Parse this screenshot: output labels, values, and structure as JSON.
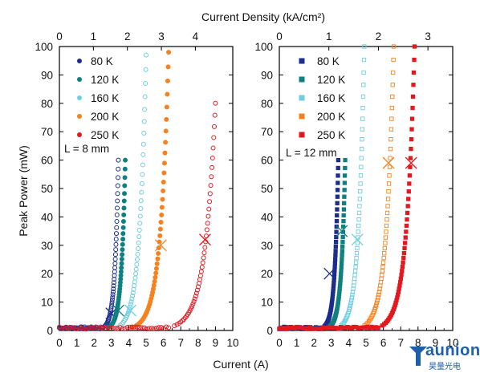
{
  "colors": {
    "80 K": "#1c2d8c",
    "120 K": "#0f8080",
    "160 K": "#6fcde0",
    "200 K": "#f5821f",
    "250 K": "#e3191f",
    "axis": "#000000"
  },
  "labels": {
    "top_axis_title": "Current Density (kA/cm²)",
    "bottom_axis_title": "Current (A)",
    "y_axis_title": "Peak Power (mW)"
  },
  "watermark": {
    "brand": "aunion",
    "sub": "昊量光电"
  },
  "chart_data": [
    {
      "type": "scatter",
      "panel": "left",
      "annotation": "L = 8 mm",
      "xlabel": "Current (A)",
      "ylabel": "Peak Power (mW)",
      "x2label": "Current Density (kA/cm²)",
      "xlim": [
        0,
        10
      ],
      "ylim": [
        0,
        100
      ],
      "x2lim": [
        0,
        5.1
      ],
      "xticks": [
        0,
        1,
        2,
        3,
        4,
        5,
        6,
        7,
        8,
        9,
        10
      ],
      "yticks": [
        0,
        10,
        20,
        30,
        40,
        50,
        60,
        70,
        80,
        90,
        100
      ],
      "x2ticks": [
        0,
        1,
        2,
        3,
        4
      ],
      "marker": "circle",
      "legend_position": "top-left",
      "series": [
        {
          "name": "80 K",
          "threshold": 2.5,
          "x_top": 3.4,
          "y_top": 60,
          "x_cross": 3.0,
          "y_cross": 6
        },
        {
          "name": "120 K",
          "threshold": 2.8,
          "x_top": 3.8,
          "y_top": 60,
          "x_cross": 3.4,
          "y_cross": 7
        },
        {
          "name": "160 K",
          "threshold": 3.3,
          "x_top": 5.0,
          "y_top": 97,
          "x_cross": 4.1,
          "y_cross": 7
        },
        {
          "name": "200 K",
          "threshold": 4.2,
          "x_top": 6.3,
          "y_top": 98,
          "x_cross": 5.85,
          "y_cross": 30
        },
        {
          "name": "250 K",
          "threshold": 6.3,
          "x_top": 9.0,
          "y_top": 80,
          "x_cross": 8.4,
          "y_cross": 32
        }
      ]
    },
    {
      "type": "scatter",
      "panel": "right",
      "annotation": "L = 12 mm",
      "xlabel": "Current (A)",
      "ylabel": "Peak Power (mW)",
      "x2label": "Current Density (kA/cm²)",
      "xlim": [
        0,
        10
      ],
      "ylim": [
        0,
        100
      ],
      "x2lim": [
        0,
        3.5
      ],
      "xticks": [
        0,
        1,
        2,
        3,
        4,
        5,
        6,
        7,
        8,
        9,
        10
      ],
      "yticks": [
        0,
        10,
        20,
        30,
        40,
        50,
        60,
        70,
        80,
        90,
        100
      ],
      "x2ticks": [
        0,
        1,
        2,
        3
      ],
      "marker": "square",
      "legend_position": "top-left",
      "series": [
        {
          "name": "80 K",
          "threshold": 2.5,
          "x_top": 3.4,
          "y_top": 60,
          "x_cross": 2.9,
          "y_cross": 20
        },
        {
          "name": "120 K",
          "threshold": 2.8,
          "x_top": 3.8,
          "y_top": 60,
          "x_cross": 3.6,
          "y_cross": 35
        },
        {
          "name": "160 K",
          "threshold": 3.4,
          "x_top": 4.9,
          "y_top": 100,
          "x_cross": 4.5,
          "y_cross": 32
        },
        {
          "name": "200 K",
          "threshold": 4.7,
          "x_top": 6.6,
          "y_top": 100,
          "x_cross": 6.3,
          "y_cross": 59
        },
        {
          "name": "250 K",
          "threshold": 5.7,
          "x_top": 7.8,
          "y_top": 100,
          "x_cross": 7.6,
          "y_cross": 59
        }
      ]
    }
  ]
}
